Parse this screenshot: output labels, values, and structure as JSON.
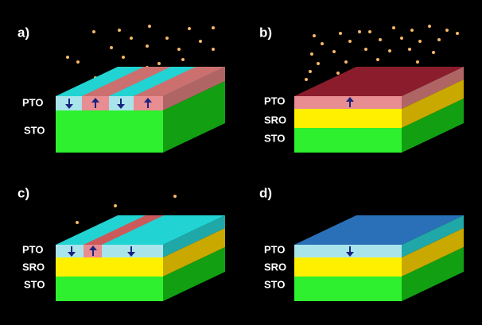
{
  "panels": [
    {
      "label": "a)",
      "layers": [
        "PTO",
        "STO"
      ]
    },
    {
      "label": "b)",
      "layers": [
        "PTO",
        "SRO",
        "STO"
      ]
    },
    {
      "label": "c)",
      "layers": [
        "PTO",
        "SRO",
        "STO"
      ]
    },
    {
      "label": "d)",
      "layers": [
        "PTO",
        "SRO",
        "STO"
      ]
    }
  ]
}
